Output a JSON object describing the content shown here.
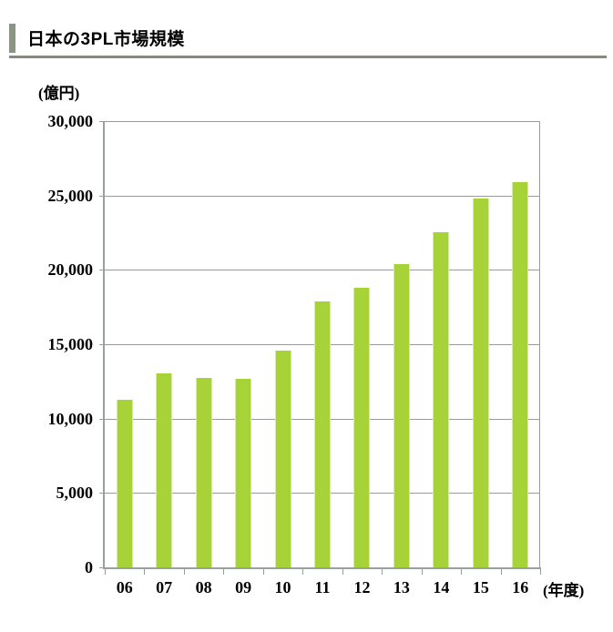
{
  "header": {
    "title": "日本の3PL市場規模"
  },
  "chart_data": {
    "type": "bar",
    "title": "日本の3PL市場規模",
    "y_unit_label": "(億円)",
    "x_unit_label": "(年度)",
    "categories": [
      "06",
      "07",
      "08",
      "09",
      "10",
      "11",
      "12",
      "13",
      "14",
      "15",
      "16"
    ],
    "values": [
      11250,
      13050,
      12750,
      12700,
      14600,
      17900,
      18800,
      20400,
      22550,
      24800,
      25900
    ],
    "ylim": [
      0,
      30000
    ],
    "ytick_step": 5000,
    "ytick_labels": [
      "0",
      "5,000",
      "10,000",
      "15,000",
      "20,000",
      "25,000",
      "30,000"
    ],
    "grid": true,
    "legend": "none",
    "colors": {
      "bar": "#a7d338",
      "gridline": "#9b9b9b",
      "axis": "#9aa09e",
      "accent": "#8c9484",
      "rule": "#848b7d",
      "text": "#000000"
    }
  }
}
